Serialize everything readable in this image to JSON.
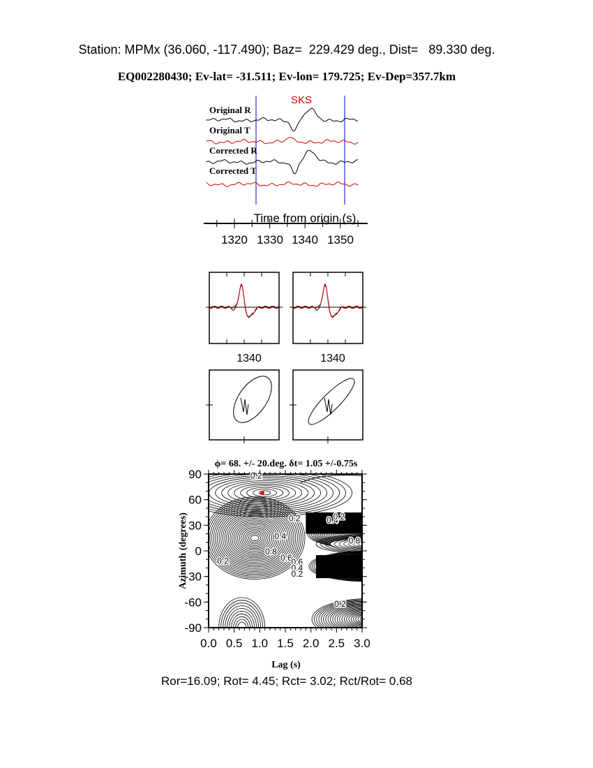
{
  "header": {
    "station_line": "Station: MPMx (36.060, -117.490); Baz=  229.429 deg., Dist=   89.330 deg.",
    "event_line": "EQ002280430; Ev-lat= -31.511; Ev-lon= 179.725; Ev-Dep=357.7km"
  },
  "colors": {
    "radial": "#000000",
    "transverse": "#cc0000",
    "window": "#0000cc",
    "phase": "#dd0000",
    "best_fit": "#ff0000"
  },
  "chart_data": [
    {
      "type": "line",
      "phase_label": "SKS",
      "traces": [
        "Original R",
        "Original T",
        "Corrected R",
        "Corrected T"
      ],
      "xlabel": "Time from origin (s)",
      "xticks": [
        "1320",
        "1330",
        "1340",
        "1350"
      ],
      "xlim": [
        1311,
        1357
      ],
      "window": [
        1326,
        1351
      ]
    },
    {
      "type": "line",
      "panels": [
        "original",
        "corrected"
      ],
      "xticks": [
        "1340"
      ]
    },
    {
      "type": "scatter",
      "panels": [
        "original particle motion",
        "corrected particle motion"
      ]
    },
    {
      "type": "heatmap",
      "title": "ϕ= 68. +/- 20.deg. δt= 1.05 +/-0.75s",
      "xlabel": "Lag (s)",
      "ylabel": "Azimuth (degrees)",
      "xlim": [
        0.0,
        3.0
      ],
      "ylim": [
        -90,
        90
      ],
      "xticks": [
        "0.0",
        "0.5",
        "1.0",
        "1.5",
        "2.0",
        "2.5",
        "3.0"
      ],
      "yticks": [
        "90",
        "60",
        "30",
        "0",
        "-30",
        "-60",
        "-90"
      ],
      "contour_labels": [
        "0.2",
        "0.2",
        "0.4",
        "0.2",
        "0.6",
        "0.8",
        "0.4",
        "0.2",
        "0.8",
        "0.6",
        "0.4",
        "0.2",
        "0.2"
      ],
      "best_fit": {
        "lag": 1.05,
        "azimuth": 68
      }
    }
  ],
  "footer": "Ror=16.09; Rot= 4.45; Rct= 3.02; Rct/Rot= 0.68"
}
